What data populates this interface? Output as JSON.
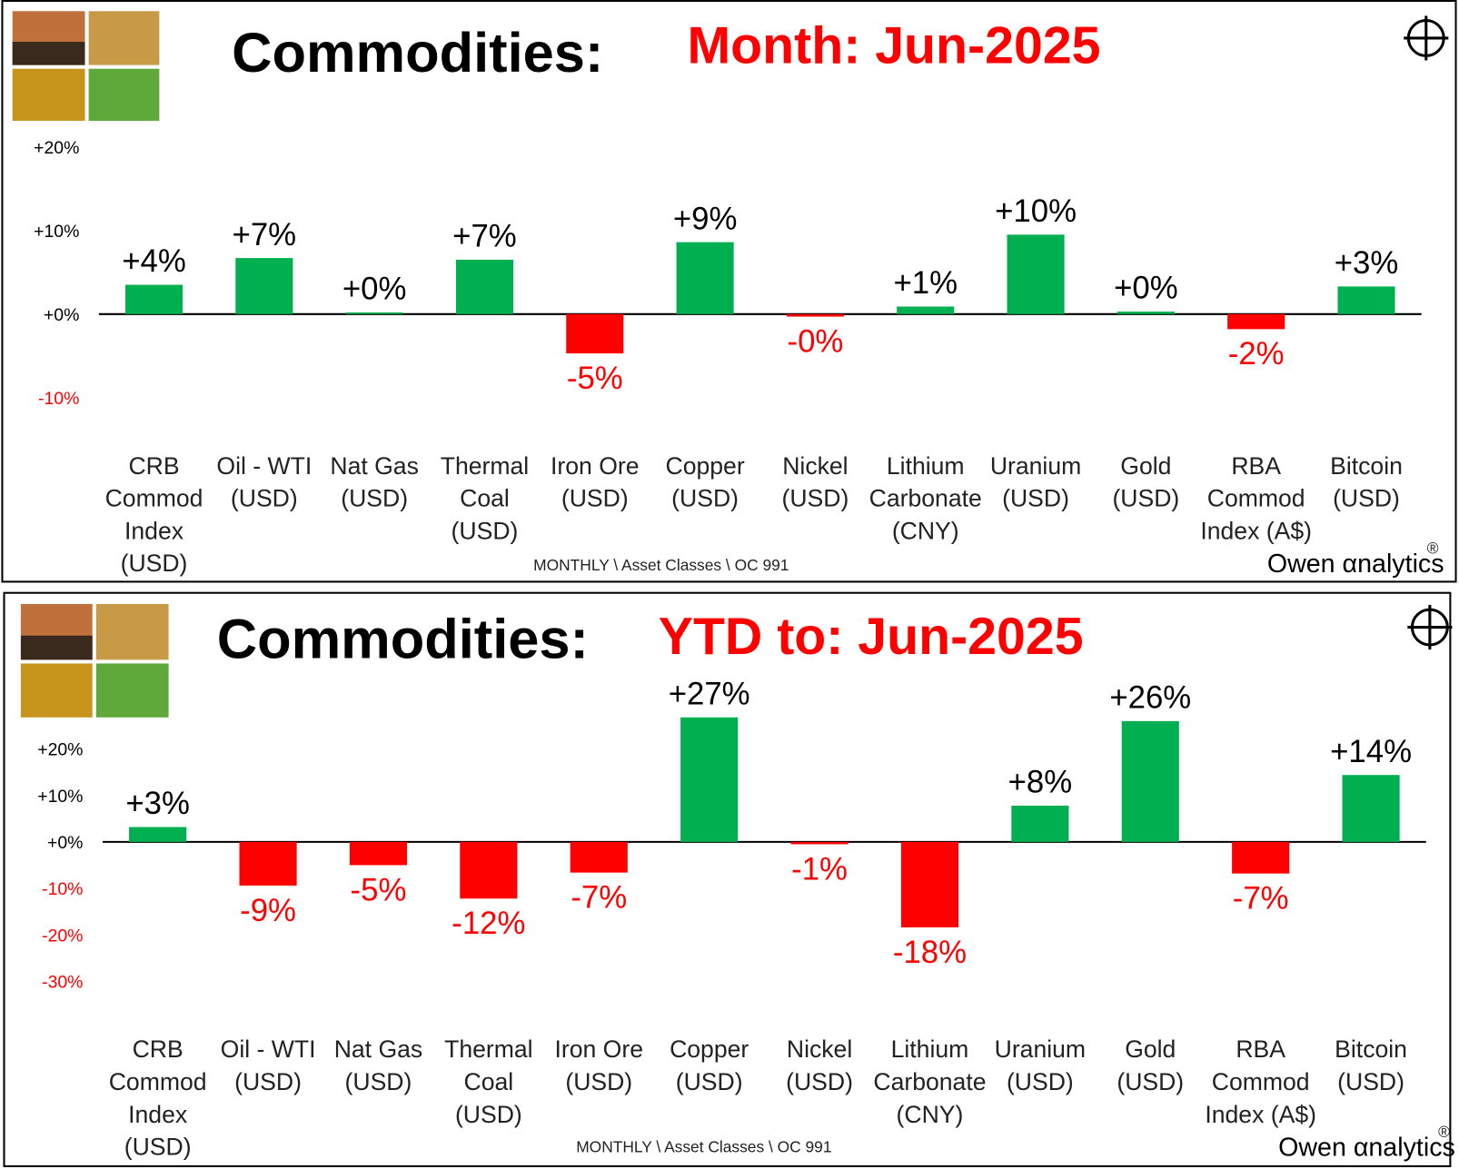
{
  "chart_data": [
    {
      "type": "bar",
      "title": "Commodities:",
      "subtitle": "Month:  Jun-2025",
      "subtitle_color": "#ff0000",
      "categories": [
        "CRB\nCommod\nIndex\n(USD)",
        "Oil - WTI\n(USD)",
        "Nat Gas\n(USD)",
        "Thermal\nCoal\n(USD)",
        "Iron Ore\n(USD)",
        "Copper\n(USD)",
        "Nickel\n(USD)",
        "Lithium\nCarbonate\n(CNY)",
        "Uranium\n(USD)",
        "Gold\n(USD)",
        "RBA\nCommod\nIndex (A$)",
        "Bitcoin\n(USD)"
      ],
      "values": [
        3.5,
        6.7,
        0.2,
        6.5,
        -4.7,
        8.6,
        -0.3,
        0.9,
        9.5,
        0.3,
        -1.8,
        3.3
      ],
      "value_labels": [
        "+4%",
        "+7%",
        "+0%",
        "+7%",
        "-5%",
        "+9%",
        "-0%",
        "+1%",
        "+10%",
        "+0%",
        "-2%",
        "+3%"
      ],
      "color_positive": "#00b050",
      "color_negative": "#ff0000",
      "ylim": [
        -10,
        20
      ],
      "yticks": [
        {
          "value": 20,
          "label": "+20%"
        },
        {
          "value": 10,
          "label": "+10%"
        },
        {
          "value": 0,
          "label": "+0%"
        },
        {
          "value": -10,
          "label": "-10%"
        }
      ],
      "grid": false,
      "footer": "MONTHLY \\ Asset Classes \\ OC 991",
      "logo": "Owen αnalytics",
      "logo_mark": "®"
    },
    {
      "type": "bar",
      "title": "Commodities:",
      "subtitle": "YTD to:  Jun-2025",
      "subtitle_color": "#ff0000",
      "categories": [
        "CRB\nCommod\nIndex\n(USD)",
        "Oil - WTI\n(USD)",
        "Nat Gas\n(USD)",
        "Thermal\nCoal\n(USD)",
        "Iron Ore\n(USD)",
        "Copper\n(USD)",
        "Nickel\n(USD)",
        "Lithium\nCarbonate\n(CNY)",
        "Uranium\n(USD)",
        "Gold\n(USD)",
        "RBA\nCommod\nIndex (A$)",
        "Bitcoin\n(USD)"
      ],
      "values": [
        3.2,
        -9.4,
        -5.0,
        -12.2,
        -6.6,
        26.8,
        -0.5,
        -18.4,
        7.8,
        26.0,
        -6.8,
        14.4
      ],
      "value_labels": [
        "+3%",
        "-9%",
        "-5%",
        "-12%",
        "-7%",
        "+27%",
        "-1%",
        "-18%",
        "+8%",
        "+26%",
        "-7%",
        "+14%"
      ],
      "color_positive": "#00b050",
      "color_negative": "#ff0000",
      "ylim": [
        -30,
        30
      ],
      "yticks": [
        {
          "value": 20,
          "label": "+20%"
        },
        {
          "value": 10,
          "label": "+10%"
        },
        {
          "value": 0,
          "label": "+0%"
        },
        {
          "value": -10,
          "label": "-10%"
        },
        {
          "value": -20,
          "label": "-20%"
        },
        {
          "value": -30,
          "label": "-30%"
        }
      ],
      "grid": false,
      "footer": "MONTHLY \\ Asset Classes \\ OC 991",
      "logo": "Owen αnalytics",
      "logo_mark": "®"
    }
  ]
}
